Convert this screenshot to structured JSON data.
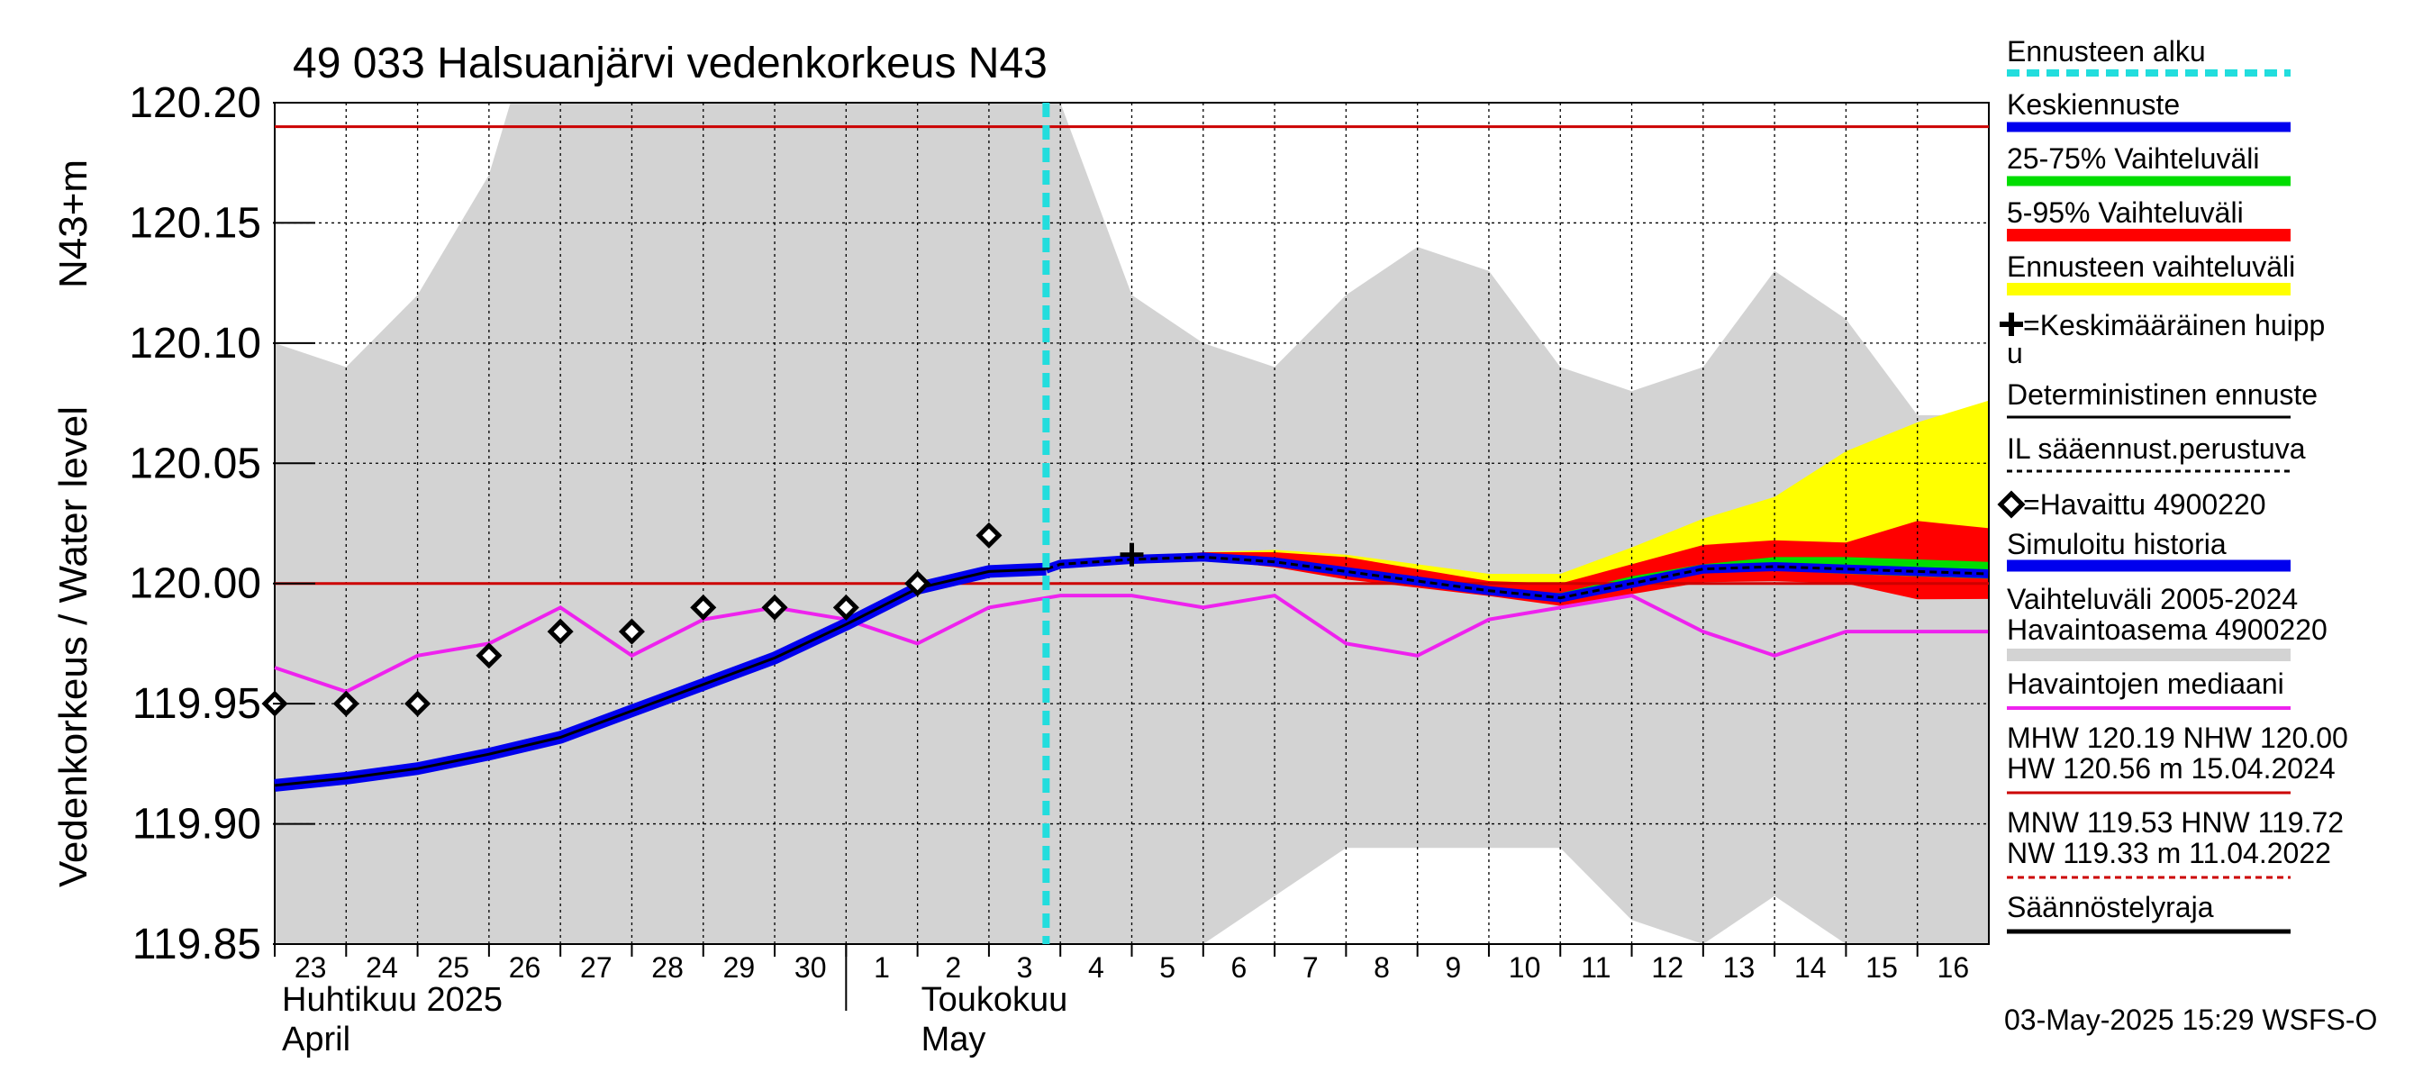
{
  "chart_data": {
    "type": "line",
    "title": "49 033 Halsuanjärvi vedenkorkeus N43",
    "ylabel": "Vedenkorkeus / Water level   N43+m",
    "ylabel_parts": [
      "Vedenkorkeus / Water level",
      "N43+m"
    ],
    "ylim": [
      119.85,
      120.2
    ],
    "yticks": [
      "119.85",
      "119.90",
      "119.95",
      "120.00",
      "120.05",
      "120.10",
      "120.15",
      "120.20"
    ],
    "x_labels": [
      "23",
      "24",
      "25",
      "26",
      "27",
      "28",
      "29",
      "30",
      "1",
      "2",
      "3",
      "4",
      "5",
      "6",
      "7",
      "8",
      "9",
      "10",
      "11",
      "12",
      "13",
      "14",
      "15",
      "16"
    ],
    "months": [
      {
        "fi": "Huhtikuu  2025",
        "en": "April"
      },
      {
        "fi": "Toukokuu",
        "en": "May"
      }
    ],
    "forecast_start_day": 10.8,
    "reference_lines": {
      "MHW": 120.19,
      "NHW": 120.0
    },
    "series": [
      {
        "name": "Vaihteluväli 2005-2024 upper",
        "x": [
          0,
          1,
          2,
          3,
          3.3,
          9.9,
          10.8,
          11,
          12,
          13,
          14,
          15,
          16,
          17,
          18,
          19,
          20,
          21,
          22,
          23,
          23.99
        ],
        "values": [
          120.1,
          120.09,
          120.12,
          120.17,
          120.2,
          120.2,
          120.2,
          120.2,
          120.12,
          120.1,
          120.09,
          120.12,
          120.14,
          120.13,
          120.09,
          120.08,
          120.09,
          120.13,
          120.11,
          120.07,
          120.07
        ]
      },
      {
        "name": "Vaihteluväli 2005-2024 lower",
        "x": [
          0,
          1,
          2,
          3,
          4,
          5,
          6,
          7,
          8,
          9,
          9.9,
          10,
          10.8,
          11,
          12,
          13,
          14,
          15,
          16,
          17,
          18,
          19,
          20,
          21,
          22,
          23,
          23.99
        ],
        "values": [
          119.85,
          119.85,
          119.85,
          119.85,
          119.85,
          119.85,
          119.85,
          119.85,
          119.85,
          119.85,
          119.85,
          119.85,
          119.85,
          119.85,
          119.85,
          119.85,
          119.87,
          119.89,
          119.89,
          119.89,
          119.89,
          119.86,
          119.85,
          119.87,
          119.85,
          119.85,
          119.85
        ]
      },
      {
        "name": "Ennusteen vaihteluväli upper",
        "x": [
          10.8,
          11,
          12,
          13,
          14,
          15,
          16,
          17,
          18,
          19,
          20,
          21,
          22,
          23,
          23.99
        ],
        "values": [
          120.006,
          120.008,
          120.011,
          120.013,
          120.014,
          120.012,
          120.008,
          120.004,
          120.004,
          120.015,
          120.027,
          120.036,
          120.055,
          120.067,
          120.076
        ]
      },
      {
        "name": "5-95% upper",
        "x": [
          10.8,
          11,
          12,
          13,
          14,
          15,
          16,
          17,
          18,
          19,
          20,
          21,
          22,
          23,
          23.99
        ],
        "values": [
          120.006,
          120.008,
          120.011,
          120.013,
          120.013,
          120.011,
          120.006,
          120.001,
          120.0,
          120.008,
          120.016,
          120.018,
          120.017,
          120.026,
          120.023
        ]
      },
      {
        "name": "25-75% upper",
        "x": [
          10.8,
          11,
          12,
          13,
          14,
          15,
          16,
          17,
          18,
          19,
          20,
          21,
          22,
          23,
          23.99
        ],
        "values": [
          120.006,
          120.008,
          120.011,
          120.012,
          120.01,
          120.006,
          120.002,
          119.998,
          119.996,
          120.003,
          120.008,
          120.011,
          120.011,
          120.01,
          120.009
        ]
      },
      {
        "name": "Keskiennuste",
        "x": [
          10.8,
          11,
          12,
          13,
          14,
          15,
          16,
          17,
          18,
          19,
          20,
          21,
          22,
          23,
          23.99
        ],
        "values": [
          120.006,
          120.008,
          120.01,
          120.011,
          120.009,
          120.005,
          120.001,
          119.997,
          119.994,
          120.0,
          120.006,
          120.007,
          120.006,
          120.005,
          120.004
        ]
      },
      {
        "name": "Simuloitu historia",
        "x": [
          0,
          1,
          2,
          3,
          4,
          5,
          6,
          7,
          8,
          9,
          10,
          10.8
        ],
        "values": [
          119.916,
          119.919,
          119.923,
          119.929,
          119.936,
          119.947,
          119.958,
          119.969,
          119.983,
          119.998,
          120.005,
          120.006
        ]
      },
      {
        "name": "Havaittu 4900220",
        "x": [
          0,
          1,
          2,
          3,
          4,
          5,
          6,
          7,
          8,
          9,
          10
        ],
        "values": [
          119.95,
          119.95,
          119.95,
          119.97,
          119.98,
          119.98,
          119.99,
          119.99,
          119.99,
          120.0,
          120.02
        ]
      },
      {
        "name": "Havaintojen mediaani",
        "x": [
          0,
          1,
          2,
          3,
          4,
          5,
          6,
          7,
          8,
          9,
          10,
          11,
          12,
          13,
          14,
          15,
          16,
          17,
          18,
          19,
          20,
          21,
          22,
          23,
          23.99
        ],
        "values": [
          119.965,
          119.955,
          119.97,
          119.975,
          119.99,
          119.97,
          119.985,
          119.99,
          119.985,
          119.975,
          119.99,
          119.995,
          119.995,
          119.99,
          119.995,
          119.975,
          119.97,
          119.985,
          119.99,
          119.995,
          119.98,
          119.97,
          119.98,
          119.98,
          119.98
        ]
      }
    ],
    "peak_marker": {
      "x": 12,
      "y": 120.012
    },
    "legend": [
      "Ennusteen alku",
      "Keskiennuste",
      "25-75% Vaihteluväli",
      "5-95% Vaihteluväli",
      "Ennusteen vaihteluväli",
      "=Keskimääräinen huipp",
      "u",
      "Deterministinen ennuste",
      "IL sääennust.perustuva",
      "=Havaittu 4900220",
      "Simuloitu historia",
      "Vaihteluväli 2005-2024",
      " Havaintoasema 4900220",
      "Havaintojen mediaani",
      "MHW 120.19 NHW 120.00",
      "HW 120.56 m 15.04.2024",
      "MNW 119.53 HNW 119.72",
      "NW 119.33 m 11.04.2022",
      "Säännöstelyraja"
    ],
    "legend_placement": "right",
    "timestamp": "03-May-2025 15:29 WSFS-O",
    "grid": true
  },
  "colors": {
    "grid": "#000000",
    "history_band": "#d3d3d3",
    "ensemble": "#ffff00",
    "p5_95": "#ff0000",
    "p25_75": "#00dd00",
    "mean": "#0000ff",
    "forecast_start": "#22dddd",
    "median": "#ee22ee",
    "reference": "#cc0000"
  }
}
